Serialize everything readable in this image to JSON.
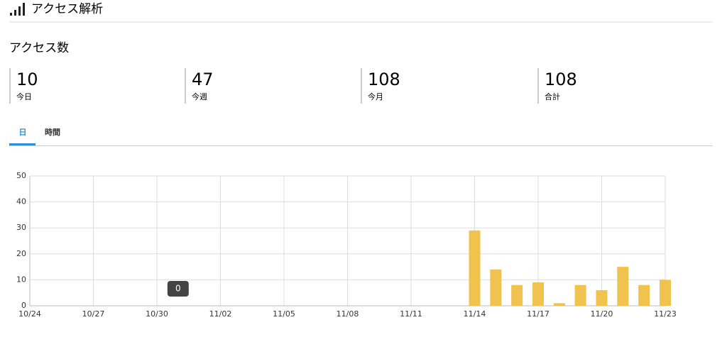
{
  "header": {
    "title": "アクセス解析"
  },
  "section_title": "アクセス数",
  "stats": [
    {
      "value": 10,
      "label": "今日"
    },
    {
      "value": 47,
      "label": "今週"
    },
    {
      "value": 108,
      "label": "今月"
    },
    {
      "value": 108,
      "label": "合計"
    }
  ],
  "tabs": [
    "日",
    "時間"
  ],
  "chart_data": {
    "type": "bar",
    "categories": [
      "10/24",
      null,
      null,
      "10/27",
      null,
      null,
      "10/30",
      null,
      null,
      "11/02",
      null,
      null,
      "11/05",
      null,
      null,
      "11/08",
      null,
      null,
      "11/11",
      null,
      null,
      "11/14",
      null,
      null,
      "11/17",
      null,
      null,
      "11/20",
      null,
      null,
      "11/23"
    ],
    "values": [
      0,
      0,
      0,
      0,
      0,
      0,
      0,
      0,
      0,
      0,
      0,
      0,
      0,
      0,
      0,
      0,
      0,
      0,
      0,
      0,
      0,
      29,
      14,
      8,
      9,
      1,
      8,
      6,
      15,
      8,
      10
    ],
    "color": "#f0c24e",
    "ylim": [
      0,
      50
    ],
    "yticks": [
      0,
      10,
      20,
      30,
      40,
      50
    ],
    "grid": true
  }
}
